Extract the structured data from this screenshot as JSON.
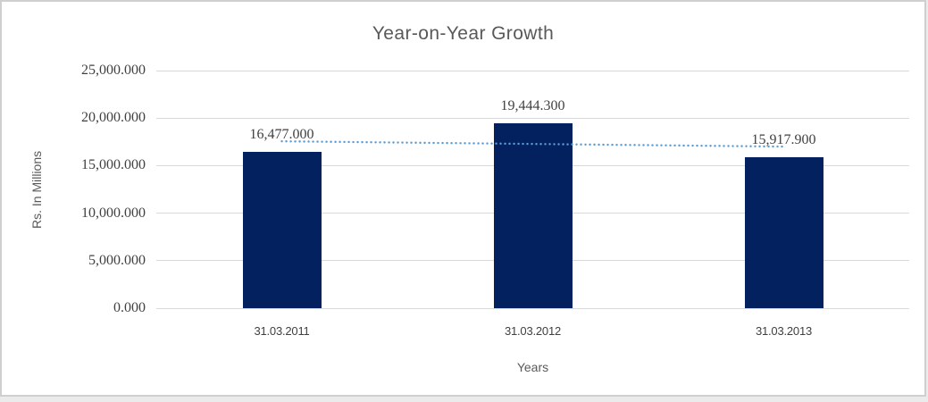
{
  "page": {
    "background_color": "#EBEBEB",
    "frame_border_color": "#D0CECE",
    "canvas_color": "#FFFFFF"
  },
  "chart_data": {
    "type": "bar",
    "title": "Year-on-Year Growth",
    "xlabel": "Years",
    "ylabel": "Rs. In Millions",
    "categories": [
      "31.03.2011",
      "31.03.2012",
      "31.03.2013"
    ],
    "values": [
      16477.0,
      19444.3,
      15917.9
    ],
    "data_labels": [
      "16,477.000",
      "19,444.300",
      "15,917.900"
    ],
    "ylim": [
      0,
      25000
    ],
    "ytick_values": [
      0,
      5000,
      10000,
      15000,
      20000,
      25000
    ],
    "ytick_labels": [
      "0.000",
      "5,000.000",
      "10,000.000",
      "15,000.000",
      "20,000.000",
      "25,000.000"
    ],
    "grid": true,
    "legend": false,
    "bar_color": "#03215E",
    "gridline_color": "#D9D9D9",
    "title_color": "#595959",
    "tick_color": "#404040",
    "trendline": {
      "type": "linear",
      "style": "dotted",
      "color": "#5B9BD5"
    }
  }
}
